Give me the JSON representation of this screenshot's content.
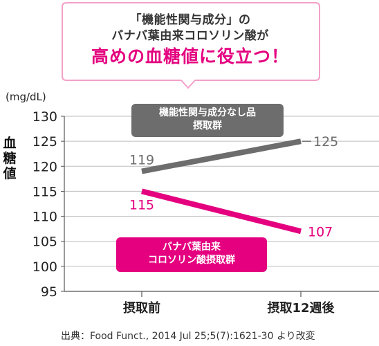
{
  "callout": {
    "line1": "「機能性関与成分」の",
    "line2": "バナバ葉由来コロソリン酸が",
    "line3": "高めの血糖値に役立つ！"
  },
  "legend": {
    "gray_line1": "機能性関与成分なし品",
    "gray_line2": "摂取群",
    "pink_line1": "バナバ葉由来",
    "pink_line2": "コロソリン酸摂取群"
  },
  "source": "出典：Food Funct., 2014 Jul 25;5(7):1621-30 より改変",
  "colors": {
    "gray": "#6d6d6d",
    "pink": "#e4007f",
    "callout_border": "#f3a0c8"
  },
  "chart_data": {
    "type": "line",
    "categories": [
      "摂取前",
      "摂取12週後"
    ],
    "ylabel": "血糖値",
    "yunit": "(mg/dL)",
    "ylim": [
      95,
      130
    ],
    "yticks": [
      95,
      100,
      105,
      110,
      115,
      120,
      125,
      130
    ],
    "grid": true,
    "series": [
      {
        "name": "機能性関与成分なし品摂取群",
        "values": [
          119,
          125
        ],
        "color": "#6d6d6d"
      },
      {
        "name": "バナバ葉由来コロソリン酸摂取群",
        "values": [
          115,
          107
        ],
        "color": "#e4007f"
      }
    ],
    "data_labels": [
      [
        "119",
        "125"
      ],
      [
        "115",
        "107"
      ]
    ]
  }
}
